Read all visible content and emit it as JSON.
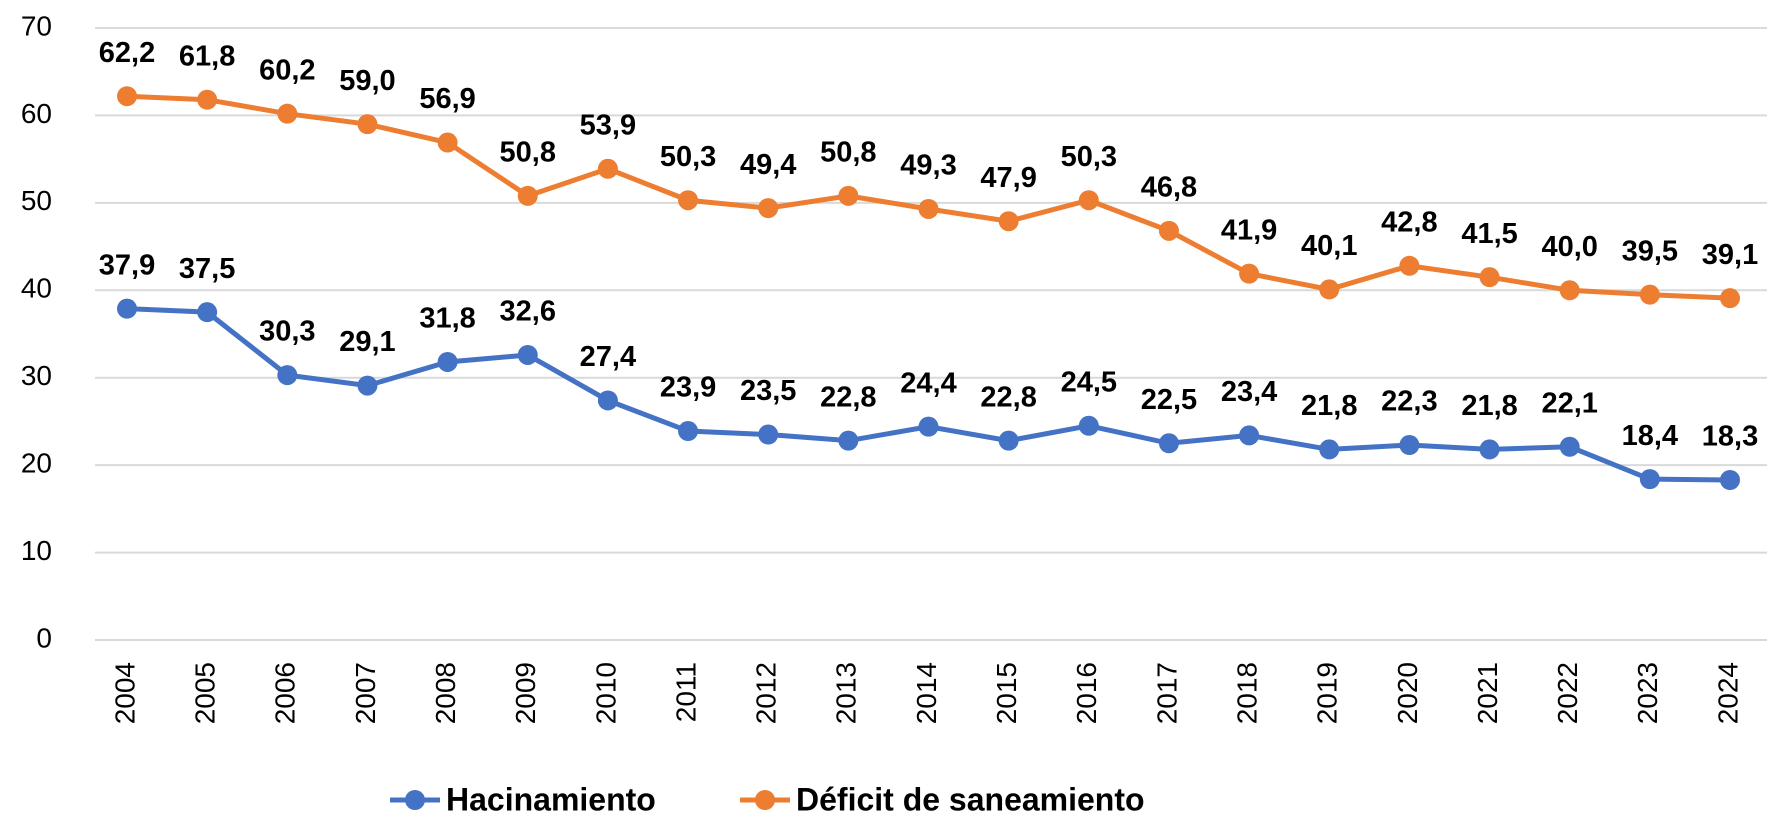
{
  "chart_data": {
    "type": "line",
    "categories": [
      "2004",
      "2005",
      "2006",
      "2007",
      "2008",
      "2009",
      "2010",
      "2011",
      "2012",
      "2013",
      "2014",
      "2015",
      "2016",
      "2017",
      "2018",
      "2019",
      "2020",
      "2021",
      "2022",
      "2023",
      "2024"
    ],
    "series": [
      {
        "name": "Hacinamiento",
        "color": "#4472c4",
        "values": [
          37.9,
          37.5,
          30.3,
          29.1,
          31.8,
          32.6,
          27.4,
          23.9,
          23.5,
          22.8,
          24.4,
          22.8,
          24.5,
          22.5,
          23.4,
          21.8,
          22.3,
          21.8,
          22.1,
          18.4,
          18.3
        ],
        "value_labels": [
          "37,9",
          "37,5",
          "30,3",
          "29,1",
          "31,8",
          "32,6",
          "27,4",
          "23,9",
          "23,5",
          "22,8",
          "24,4",
          "22,8",
          "24,5",
          "22,5",
          "23,4",
          "21,8",
          "22,3",
          "21,8",
          "22,1",
          "18,4",
          "18,3"
        ]
      },
      {
        "name": "Déficit de saneamiento",
        "color": "#ed7d31",
        "values": [
          62.2,
          61.8,
          60.2,
          59.0,
          56.9,
          50.8,
          53.9,
          50.3,
          49.4,
          50.8,
          49.3,
          47.9,
          50.3,
          46.8,
          41.9,
          40.1,
          42.8,
          41.5,
          40.0,
          39.5,
          39.1
        ],
        "value_labels": [
          "62,2",
          "61,8",
          "60,2",
          "59,0",
          "56,9",
          "50,8",
          "53,9",
          "50,3",
          "49,4",
          "50,8",
          "49,3",
          "47,9",
          "50,3",
          "46,8",
          "41,9",
          "40,1",
          "42,8",
          "41,5",
          "40,0",
          "39,5",
          "39,1"
        ]
      }
    ],
    "ylim": [
      0,
      70
    ],
    "yticks": [
      0,
      10,
      20,
      30,
      40,
      50,
      60,
      70
    ],
    "grid": true,
    "legend": "bottom"
  }
}
